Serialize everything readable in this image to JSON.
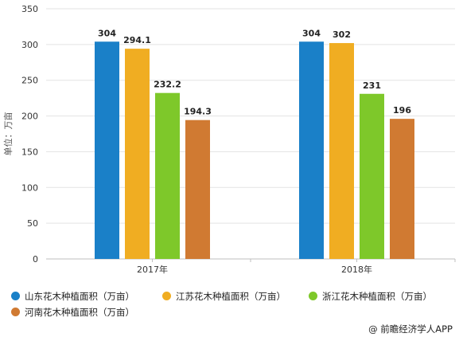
{
  "chart_data": {
    "type": "bar",
    "categories": [
      "2017年",
      "2018年"
    ],
    "series": [
      {
        "name": "山东花木种植面积（万亩）",
        "values": [
          304,
          304
        ],
        "color": "#1a80c8"
      },
      {
        "name": "江苏花木种植面积（万亩）",
        "values": [
          294.1,
          302
        ],
        "color": "#f0ad22"
      },
      {
        "name": "浙江花木种植面积（万亩）",
        "values": [
          232.2,
          231
        ],
        "color": "#7ec82a"
      },
      {
        "name": "河南花木种植面积（万亩）",
        "values": [
          194.3,
          196
        ],
        "color": "#d07a32"
      }
    ],
    "data_labels": [
      [
        "304",
        "304"
      ],
      [
        "294.1",
        "302"
      ],
      [
        "232.2",
        "231"
      ],
      [
        "194.3",
        "196"
      ]
    ],
    "ylabel": "单位：万亩",
    "ylim": [
      0,
      350
    ],
    "yticks": [
      0,
      50,
      100,
      150,
      200,
      250,
      300,
      350
    ],
    "grid": true,
    "legend_position": "bottom"
  },
  "footer": {
    "source": "@ 前瞻经济学人APP"
  }
}
